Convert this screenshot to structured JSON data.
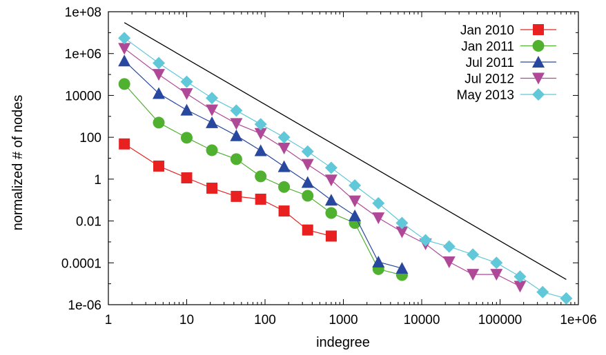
{
  "chart_data": {
    "type": "line",
    "title": "",
    "xlabel": "indegree",
    "ylabel": "normalized # of nodes",
    "x_scale": "log",
    "y_scale": "log",
    "xlim": [
      1,
      1000000
    ],
    "ylim": [
      1e-06,
      100000000
    ],
    "grid": false,
    "legend_position": "top-right",
    "x_ticks": [
      "1",
      "10",
      "100",
      "1000",
      "10000",
      "100000",
      "1e+06"
    ],
    "y_ticks": [
      "1e-06",
      "0.0001",
      "0.01",
      "1",
      "100",
      "10000",
      "1e+06",
      "1e+08"
    ],
    "x_tick_values": [
      1,
      10,
      100,
      1000,
      10000,
      100000,
      1000000
    ],
    "y_tick_values": [
      1e-06,
      0.0001,
      0.01,
      1,
      100,
      10000,
      1000000,
      100000000
    ],
    "reference_line": {
      "x": [
        1.6,
        700000
      ],
      "y": [
        30000000,
        1.6e-05
      ],
      "color": "#000000"
    },
    "series": [
      {
        "name": "Jan 2010",
        "color": "#e82020",
        "marker": "square",
        "x": [
          1.6,
          4.4,
          10,
          21,
          43,
          88,
          175,
          350,
          700
        ],
        "y": [
          48,
          4.2,
          1.15,
          0.37,
          0.15,
          0.11,
          0.03,
          0.0037,
          0.0019
        ]
      },
      {
        "name": "Jan 2011",
        "color": "#50b030",
        "marker": "circle",
        "x": [
          1.6,
          4.4,
          10,
          21,
          43,
          88,
          175,
          350,
          700,
          1400,
          2800,
          5600
        ],
        "y": [
          35000,
          500,
          95,
          24,
          9,
          1.35,
          0.42,
          0.16,
          0.024,
          0.008,
          5e-05,
          2.6e-05
        ]
      },
      {
        "name": "Jul 2011",
        "color": "#2848a0",
        "marker": "triangle-up",
        "x": [
          1.6,
          4.4,
          10,
          21,
          43,
          88,
          175,
          350,
          700,
          1400,
          2800,
          5600
        ],
        "y": [
          450000,
          12500,
          2000,
          500,
          120,
          23,
          4,
          0.7,
          0.1,
          0.018,
          0.00011,
          5.5e-05
        ]
      },
      {
        "name": "Jul 2012",
        "color": "#b04898",
        "marker": "triangle-down",
        "x": [
          1.6,
          4.4,
          10,
          21,
          43,
          88,
          175,
          350,
          700,
          1400,
          2800,
          5600,
          11200,
          22400,
          45000,
          90000,
          180000
        ],
        "y": [
          1750000,
          100000,
          12000,
          2000,
          450,
          150,
          30,
          5,
          0.9,
          0.09,
          0.014,
          0.003,
          0.0008,
          0.00011,
          2.8e-05,
          2.8e-05,
          7.5e-06
        ]
      },
      {
        "name": "May 2013",
        "color": "#60c8d8",
        "marker": "diamond",
        "x": [
          1.6,
          4.4,
          10,
          21,
          43,
          88,
          175,
          350,
          700,
          1400,
          2800,
          5600,
          11200,
          22400,
          45000,
          90000,
          180000,
          350000,
          700000
        ],
        "y": [
          5500000,
          350000,
          45000,
          7500,
          1900,
          420,
          100,
          21,
          3.5,
          0.5,
          0.07,
          0.008,
          0.0012,
          0.0006,
          0.00025,
          0.0001,
          2.2e-05,
          4e-06,
          2e-06
        ]
      }
    ]
  }
}
